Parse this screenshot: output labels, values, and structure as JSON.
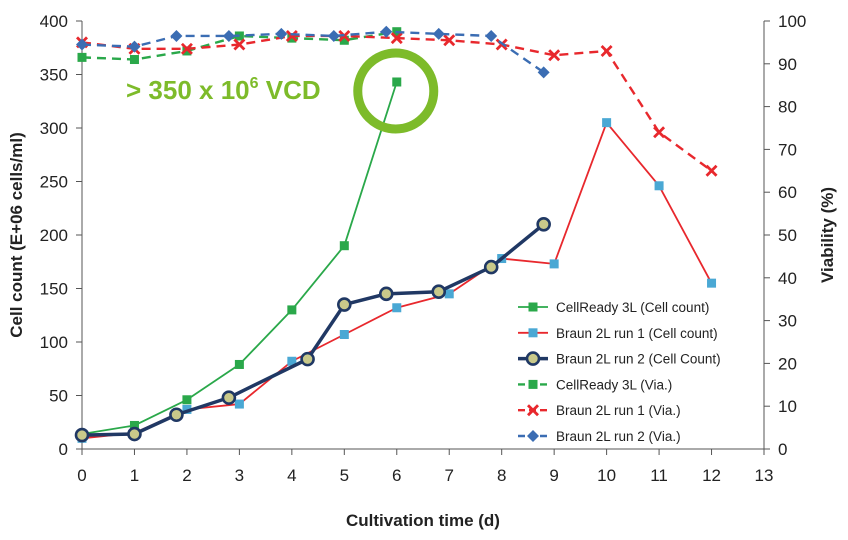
{
  "chart_data": {
    "type": "line",
    "xlabel": "Cultivation time (d)",
    "ylabel": "Cell count (E+06 cells/ml)",
    "y2label": "Viability (%)",
    "xlim": [
      0,
      13
    ],
    "ylim": [
      0,
      400
    ],
    "y2lim": [
      0,
      100
    ],
    "x_ticks": [
      "0",
      "1",
      "2",
      "3",
      "4",
      "5",
      "6",
      "7",
      "8",
      "9",
      "10",
      "11",
      "12",
      "13"
    ],
    "y_ticks": [
      "0",
      "50",
      "100",
      "150",
      "200",
      "250",
      "300",
      "350",
      "400"
    ],
    "y2_ticks": [
      "0",
      "10",
      "20",
      "30",
      "40",
      "50",
      "60",
      "70",
      "80",
      "90",
      "100"
    ],
    "grid": false,
    "legend_position": "bottom-right",
    "annotation": {
      "text_main": "> 350 x 10",
      "text_sup": "6",
      "text_tail": " VCD",
      "highlight_x": 6,
      "highlight_y": 343
    },
    "series": [
      {
        "name": "CellReady 3L (Cell count)",
        "axis": "left",
        "style": "solid",
        "marker": "square",
        "color": "#2aa84a",
        "line_width": 1.8,
        "x": [
          0,
          1,
          2,
          3,
          4,
          5,
          6
        ],
        "values": [
          14,
          22,
          46,
          79,
          130,
          190,
          343
        ]
      },
      {
        "name": "Braun 2L run 1 (Cell count)",
        "axis": "left",
        "style": "solid",
        "marker": "square",
        "color": "#e8282d",
        "marker_color": "#4aa8d4",
        "line_width": 1.8,
        "x": [
          0,
          1,
          2,
          3,
          4,
          5,
          6,
          7,
          8,
          9,
          10,
          11,
          12
        ],
        "values": [
          10,
          15,
          37,
          42,
          82,
          107,
          132,
          145,
          178,
          173,
          305,
          246,
          155
        ]
      },
      {
        "name": "Braun 2L run 2 (Cell Count)",
        "axis": "left",
        "style": "solid",
        "marker": "circle",
        "color": "#203864",
        "marker_color": "#c9c98a",
        "line_width": 3.5,
        "x": [
          0,
          1,
          1.8,
          2.8,
          4.3,
          5,
          5.8,
          6.8,
          7.8,
          8.8
        ],
        "values": [
          13,
          14,
          32,
          48,
          84,
          135,
          145,
          147,
          170,
          210
        ]
      },
      {
        "name": "CellReady 3L (Via.)",
        "axis": "right",
        "style": "dashed",
        "marker": "square",
        "color": "#2aa84a",
        "line_width": 2.4,
        "x": [
          0,
          1,
          2,
          3,
          4,
          5,
          6
        ],
        "values": [
          91.5,
          91,
          93,
          96.5,
          96,
          95.5,
          97.5
        ]
      },
      {
        "name": "Braun 2L run 1 (Via.)",
        "axis": "right",
        "style": "dashed",
        "marker": "x",
        "color": "#e8282d",
        "line_width": 2.4,
        "x": [
          0,
          1,
          2,
          3,
          4,
          5,
          6,
          7,
          8,
          9,
          10,
          11,
          12
        ],
        "values": [
          95,
          93.5,
          93.5,
          94.5,
          96.5,
          96.5,
          96,
          95.5,
          94.5,
          92,
          93,
          74,
          65
        ]
      },
      {
        "name": "Braun 2L run 2 (Via.)",
        "axis": "right",
        "style": "dashed",
        "marker": "diamond",
        "color": "#3b6db3",
        "line_width": 2.4,
        "x": [
          0,
          1,
          1.8,
          2.8,
          3.8,
          4.8,
          5.8,
          6.8,
          7.8,
          8.8
        ],
        "values": [
          94.5,
          94,
          96.5,
          96.5,
          97,
          96.5,
          97.5,
          97,
          96.5,
          88
        ]
      }
    ]
  }
}
